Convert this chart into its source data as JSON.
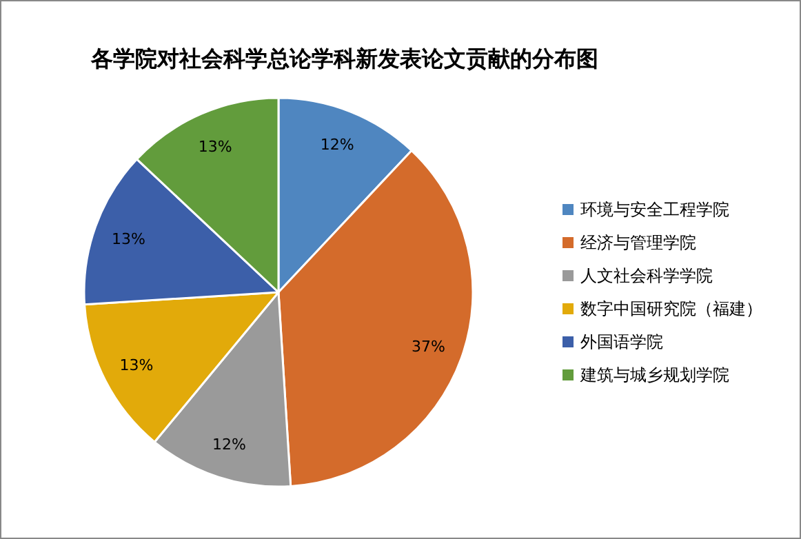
{
  "chart_data": {
    "type": "pie",
    "title": "各学院对社会科学总论学科新发表论文贡献的分布图",
    "categories": [
      "环境与安全工程学院",
      "经济与管理学院",
      "人文社会科学学院",
      "数字中国研究院（福建）",
      "外国语学院",
      "建筑与城乡规划学院"
    ],
    "values": [
      12,
      37,
      12,
      13,
      13,
      13
    ],
    "colors": [
      "#4f86c0",
      "#d46b2b",
      "#9a9a9a",
      "#e2aa0a",
      "#3c5fa9",
      "#629c3c"
    ],
    "value_labels": [
      "12%",
      "37%",
      "12%",
      "13%",
      "13%",
      "13%"
    ],
    "legend": "right"
  }
}
